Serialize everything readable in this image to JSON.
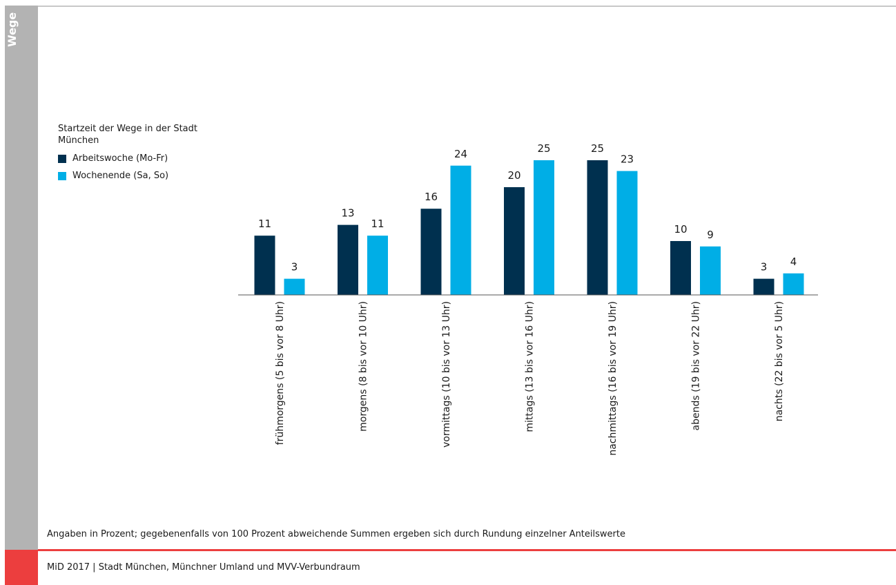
{
  "sidebar": {
    "label": "Wege"
  },
  "legend": {
    "title": "Startzeit der Wege in der Stadt München",
    "items": [
      {
        "label": "Arbeitswoche (Mo-Fr)",
        "color": "#00304f"
      },
      {
        "label": "Wochenende (Sa, So)",
        "color": "#00aee6"
      }
    ]
  },
  "note": "Angaben in Prozent; gegebenenfalls von 100 Prozent abweichende Summen ergeben sich durch Rundung einzelner Anteilswerte",
  "footer": {
    "source": "MiD 2017 | Stadt München, Münchner Umland und MVV-Verbundraum"
  },
  "colors": {
    "accent_red": "#ec3e3e",
    "sidebar_gray": "#b3b3b3"
  },
  "chart_data": {
    "type": "bar",
    "categories": [
      "frühmorgens (5 bis vor 8 Uhr)",
      "morgens (8 bis vor 10 Uhr)",
      "vormittags (10 bis vor 13 Uhr)",
      "mittags (13 bis vor 16 Uhr)",
      "nachmittags (16 bis vor 19 Uhr)",
      "abends (19 bis vor 22 Uhr)",
      "nachts (22 bis vor 5 Uhr)"
    ],
    "series": [
      {
        "name": "Arbeitswoche (Mo-Fr)",
        "color": "#00304f",
        "values": [
          11,
          13,
          16,
          20,
          25,
          10,
          3
        ]
      },
      {
        "name": "Wochenende (Sa, So)",
        "color": "#00aee6",
        "values": [
          3,
          11,
          24,
          25,
          23,
          9,
          4
        ]
      }
    ],
    "ylim": [
      0,
      25
    ],
    "grid": false,
    "legend_position": "left"
  }
}
